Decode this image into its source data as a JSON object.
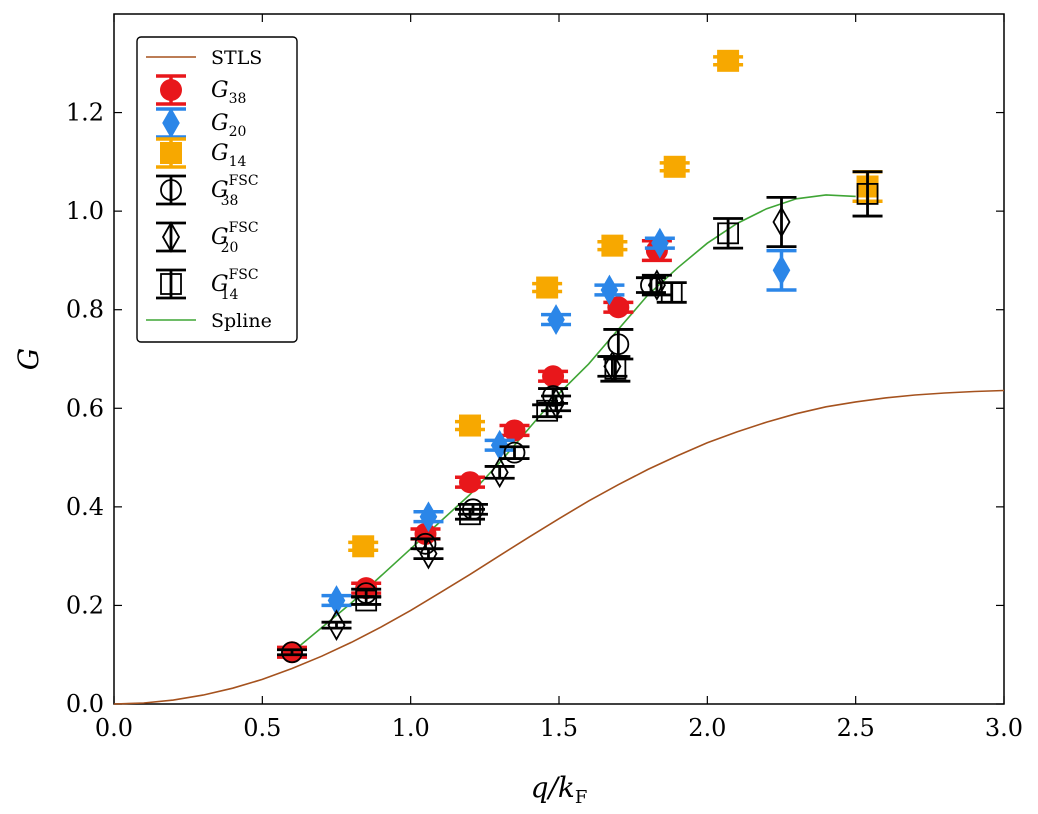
{
  "chart_data": {
    "type": "scatter",
    "xlabel": "q/k_F",
    "ylabel": "G",
    "xlim": [
      0.0,
      3.0
    ],
    "ylim": [
      0.0,
      1.4
    ],
    "xticks": [
      "0.0",
      "0.5",
      "1.0",
      "1.5",
      "2.0",
      "2.5",
      "3.0"
    ],
    "yticks": [
      "0.0",
      "0.2",
      "0.4",
      "0.6",
      "0.8",
      "1.0",
      "1.2"
    ],
    "legend_position": "top-left",
    "legend": [
      {
        "key": "stls",
        "label": "STLS"
      },
      {
        "key": "g38",
        "label": "G",
        "sub": "38"
      },
      {
        "key": "g20",
        "label": "G",
        "sub": "20"
      },
      {
        "key": "g14",
        "label": "G",
        "sub": "14"
      },
      {
        "key": "g38fsc",
        "label": "G",
        "sub": "38",
        "sup": "FSC"
      },
      {
        "key": "g20fsc",
        "label": "G",
        "sub": "20",
        "sup": "FSC"
      },
      {
        "key": "g14fsc",
        "label": "G",
        "sub": "14",
        "sup": "FSC"
      },
      {
        "key": "spline",
        "label": "Spline"
      }
    ],
    "series": [
      {
        "key": "stls",
        "style": "line",
        "color": "#a5521e",
        "x": [
          0.0,
          0.1,
          0.2,
          0.3,
          0.4,
          0.5,
          0.6,
          0.7,
          0.8,
          0.9,
          1.0,
          1.1,
          1.2,
          1.3,
          1.4,
          1.5,
          1.6,
          1.7,
          1.8,
          1.9,
          2.0,
          2.1,
          2.2,
          2.3,
          2.4,
          2.5,
          2.6,
          2.7,
          2.8,
          2.9,
          3.0
        ],
        "y": [
          0.0,
          0.002,
          0.008,
          0.018,
          0.032,
          0.05,
          0.072,
          0.097,
          0.125,
          0.156,
          0.19,
          0.226,
          0.263,
          0.301,
          0.339,
          0.376,
          0.412,
          0.445,
          0.476,
          0.504,
          0.53,
          0.552,
          0.572,
          0.589,
          0.603,
          0.613,
          0.621,
          0.627,
          0.631,
          0.634,
          0.636
        ]
      },
      {
        "key": "spline",
        "style": "line",
        "color": "#3fa535",
        "x": [
          0.6,
          0.7,
          0.8,
          0.9,
          1.0,
          1.1,
          1.2,
          1.3,
          1.4,
          1.5,
          1.6,
          1.7,
          1.8,
          1.9,
          2.0,
          2.1,
          2.2,
          2.3,
          2.4,
          2.5
        ],
        "y": [
          0.105,
          0.155,
          0.205,
          0.26,
          0.315,
          0.37,
          0.425,
          0.49,
          0.56,
          0.63,
          0.69,
          0.76,
          0.83,
          0.885,
          0.935,
          0.975,
          1.005,
          1.025,
          1.033,
          1.03
        ]
      },
      {
        "key": "g38",
        "style": "marker",
        "marker": "circle",
        "filled": true,
        "color": "#e8171b",
        "points": [
          [
            0.6,
            0.105,
            0.01
          ],
          [
            0.85,
            0.235,
            0.01
          ],
          [
            1.05,
            0.345,
            0.01
          ],
          [
            1.2,
            0.45,
            0.01
          ],
          [
            1.35,
            0.555,
            0.01
          ],
          [
            1.48,
            0.665,
            0.01
          ],
          [
            1.7,
            0.805,
            0.01
          ],
          [
            1.83,
            0.92,
            0.02
          ]
        ]
      },
      {
        "key": "g20",
        "style": "marker",
        "marker": "diamond",
        "filled": true,
        "color": "#2b86e8",
        "points": [
          [
            0.75,
            0.21,
            0.01
          ],
          [
            1.06,
            0.38,
            0.01
          ],
          [
            1.3,
            0.525,
            0.01
          ],
          [
            1.49,
            0.78,
            0.01
          ],
          [
            1.67,
            0.84,
            0.01
          ],
          [
            1.84,
            0.935,
            0.01
          ],
          [
            2.25,
            0.88,
            0.04
          ]
        ]
      },
      {
        "key": "g14",
        "style": "marker",
        "marker": "square",
        "filled": true,
        "color": "#f7a800",
        "points": [
          [
            0.84,
            0.32,
            0.008
          ],
          [
            1.2,
            0.565,
            0.008
          ],
          [
            1.46,
            0.845,
            0.008
          ],
          [
            1.68,
            0.93,
            0.008
          ],
          [
            1.89,
            1.09,
            0.008
          ],
          [
            2.07,
            1.305,
            0.008
          ],
          [
            2.54,
            1.05,
            0.03
          ]
        ]
      },
      {
        "key": "g38fsc",
        "style": "marker",
        "marker": "circle",
        "filled": false,
        "color": "#000000",
        "points": [
          [
            0.6,
            0.105,
            0.005
          ],
          [
            0.85,
            0.225,
            0.008
          ],
          [
            1.05,
            0.325,
            0.01
          ],
          [
            1.21,
            0.395,
            0.01
          ],
          [
            1.35,
            0.51,
            0.012
          ],
          [
            1.48,
            0.625,
            0.015
          ],
          [
            1.7,
            0.73,
            0.03
          ],
          [
            1.81,
            0.85,
            0.015
          ]
        ]
      },
      {
        "key": "g20fsc",
        "style": "marker",
        "marker": "diamond",
        "filled": false,
        "color": "#000000",
        "points": [
          [
            0.75,
            0.16,
            0.006
          ],
          [
            1.06,
            0.305,
            0.01
          ],
          [
            1.3,
            0.47,
            0.012
          ],
          [
            1.49,
            0.61,
            0.015
          ],
          [
            1.68,
            0.685,
            0.02
          ],
          [
            1.83,
            0.85,
            0.02
          ],
          [
            2.25,
            0.978,
            0.05
          ]
        ]
      },
      {
        "key": "g14fsc",
        "style": "marker",
        "marker": "square",
        "filled": false,
        "color": "#000000",
        "points": [
          [
            0.85,
            0.21,
            0.008
          ],
          [
            1.2,
            0.385,
            0.01
          ],
          [
            1.46,
            0.595,
            0.012
          ],
          [
            1.69,
            0.68,
            0.025
          ],
          [
            1.88,
            0.835,
            0.02
          ],
          [
            2.07,
            0.955,
            0.03
          ],
          [
            2.54,
            1.035,
            0.045
          ]
        ]
      }
    ]
  }
}
